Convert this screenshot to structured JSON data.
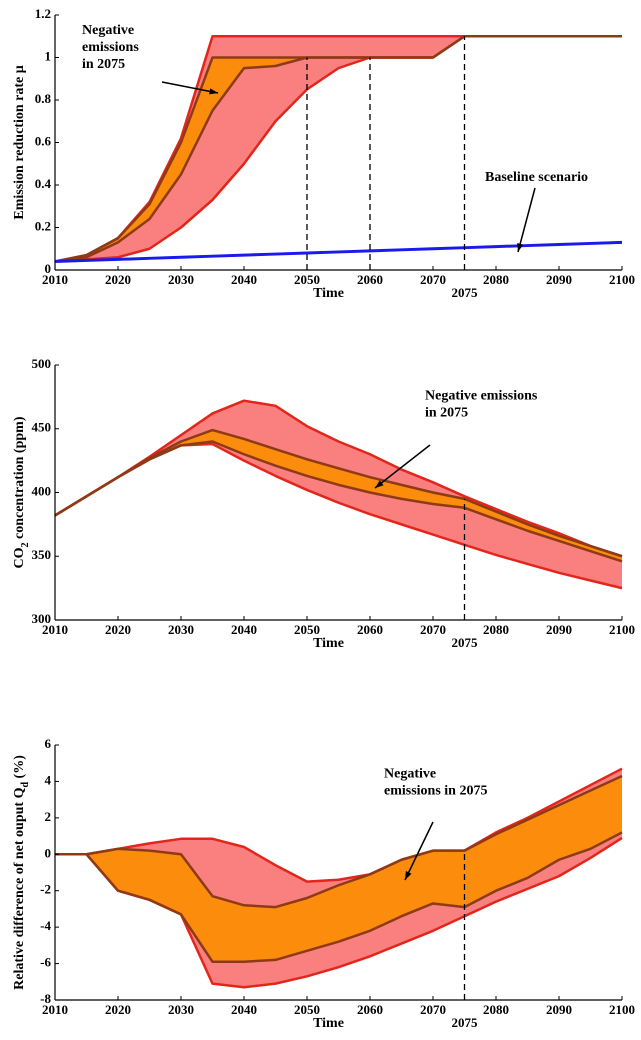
{
  "chart_data": [
    {
      "type": "area",
      "ylabel": "Emission reduction rate μ",
      "xlabel": "Time",
      "x": [
        2010,
        2015,
        2020,
        2025,
        2030,
        2035,
        2040,
        2045,
        2050,
        2055,
        2060,
        2065,
        2070,
        2075,
        2080,
        2085,
        2090,
        2095,
        2100
      ],
      "xlim": [
        2010,
        2100
      ],
      "xticks": [
        2010,
        2020,
        2030,
        2040,
        2050,
        2060,
        2070,
        2080,
        2090,
        2100
      ],
      "ylim": [
        0,
        1.2
      ],
      "yticks": [
        0,
        0.2,
        0.4,
        0.6,
        0.8,
        1,
        1.2
      ],
      "bands": [
        {
          "color": "#fa8080",
          "edge_color": "#e3261b",
          "upper": [
            0.04,
            0.07,
            0.15,
            0.32,
            0.62,
            1.1,
            1.1,
            1.1,
            1.1,
            1.1,
            1.1,
            1.1,
            1.1,
            1.1,
            1.1,
            1.1,
            1.1,
            1.1,
            1.1
          ],
          "lower": [
            0.04,
            0.05,
            0.06,
            0.1,
            0.2,
            0.33,
            0.5,
            0.7,
            0.85,
            0.95,
            1,
            1,
            1,
            1.1,
            1.1,
            1.1,
            1.1,
            1.1,
            1.1
          ]
        },
        {
          "color": "#fb8c0c",
          "edge_color": "#8e3a16",
          "upper": [
            0.04,
            0.07,
            0.15,
            0.31,
            0.6,
            1,
            1,
            1,
            1,
            1,
            1,
            1,
            1,
            1.1,
            1.1,
            1.1,
            1.1,
            1.1,
            1.1
          ],
          "lower": [
            0.04,
            0.06,
            0.13,
            0.24,
            0.45,
            0.75,
            0.95,
            0.96,
            1,
            1,
            1,
            1,
            1,
            1.1,
            1.1,
            1.1,
            1.1,
            1.1,
            1.1
          ]
        }
      ],
      "lines": [
        {
          "color": "#1a1aee",
          "values": [
            0.04,
            0.045,
            0.05,
            0.055,
            0.06,
            0.065,
            0.07,
            0.075,
            0.08,
            0.085,
            0.09,
            0.095,
            0.1,
            0.105,
            0.11,
            0.115,
            0.12,
            0.125,
            0.13
          ]
        }
      ],
      "vlines": [
        2050,
        2060,
        2075
      ],
      "annotations": [
        {
          "lines": [
            "Negative",
            "emissions",
            "in 2075"
          ]
        },
        {
          "lines": [
            "Baseline scenario"
          ]
        }
      ]
    },
    {
      "type": "area",
      "ylabel": [
        "CO",
        "2",
        " concentration (ppm)"
      ],
      "xlabel": "Time",
      "x": [
        2010,
        2015,
        2020,
        2025,
        2030,
        2035,
        2040,
        2045,
        2050,
        2055,
        2060,
        2065,
        2070,
        2075,
        2080,
        2085,
        2090,
        2095,
        2100
      ],
      "xlim": [
        2010,
        2100
      ],
      "xticks": [
        2010,
        2020,
        2030,
        2040,
        2050,
        2060,
        2070,
        2080,
        2090,
        2100
      ],
      "ylim": [
        300,
        500
      ],
      "yticks": [
        300,
        350,
        400,
        450,
        500
      ],
      "bands": [
        {
          "color": "#fa8080",
          "edge_color": "#e3261b",
          "upper": [
            382,
            397,
            412,
            428,
            445,
            462,
            472,
            468,
            452,
            440,
            430,
            418,
            408,
            397,
            387,
            377,
            368,
            358,
            350
          ],
          "lower": [
            382,
            397,
            412,
            426,
            437,
            438,
            425,
            413,
            402,
            392,
            383,
            375,
            367,
            359,
            351,
            344,
            337,
            331,
            325
          ]
        },
        {
          "color": "#fb8c0c",
          "edge_color": "#8e3a16",
          "upper": [
            382,
            397,
            412,
            427,
            440,
            449,
            442,
            434,
            426,
            419,
            412,
            406,
            400,
            395,
            385,
            375,
            366,
            358,
            350
          ],
          "lower": [
            382,
            397,
            412,
            426,
            437,
            440,
            430,
            421,
            413,
            406,
            400,
            395,
            391,
            388,
            379,
            370,
            362,
            354,
            346
          ]
        }
      ],
      "lines": [],
      "vlines": [
        2075
      ],
      "annotations": [
        {
          "lines": [
            "Negative emissions",
            "in 2075"
          ]
        }
      ]
    },
    {
      "type": "area",
      "ylabel": [
        "Relative difference of net ouput Q",
        "d",
        " (%)"
      ],
      "xlabel": "Time",
      "x": [
        2010,
        2015,
        2020,
        2025,
        2030,
        2035,
        2040,
        2045,
        2050,
        2055,
        2060,
        2065,
        2070,
        2075,
        2080,
        2085,
        2090,
        2095,
        2100
      ],
      "xlim": [
        2010,
        2100
      ],
      "xticks": [
        2010,
        2020,
        2030,
        2040,
        2050,
        2060,
        2070,
        2080,
        2090,
        2100
      ],
      "ylim": [
        -8,
        6
      ],
      "yticks": [
        -8,
        -6,
        -4,
        -2,
        0,
        2,
        4,
        6
      ],
      "bands": [
        {
          "color": "#fa8080",
          "edge_color": "#e3261b",
          "upper": [
            0,
            0,
            0.3,
            0.6,
            0.85,
            0.85,
            0.4,
            -0.6,
            -1.5,
            -1.4,
            -1.1,
            -0.3,
            0.2,
            0.2,
            1.2,
            2,
            2.9,
            3.8,
            4.7
          ],
          "lower": [
            0,
            0,
            -2,
            -2.5,
            -3.3,
            -7.1,
            -7.3,
            -7.1,
            -6.7,
            -6.2,
            -5.6,
            -4.9,
            -4.2,
            -3.4,
            -2.6,
            -1.9,
            -1.2,
            -0.2,
            0.9
          ]
        },
        {
          "color": "#fb8c0c",
          "edge_color": "#8e3a16",
          "upper": [
            0,
            0,
            0.3,
            0.2,
            0,
            -2.3,
            -2.8,
            -2.9,
            -2.4,
            -1.7,
            -1.1,
            -0.3,
            0.2,
            0.2,
            1.1,
            1.9,
            2.7,
            3.5,
            4.3
          ],
          "lower": [
            0,
            0,
            -2,
            -2.5,
            -3.3,
            -5.9,
            -5.9,
            -5.8,
            -5.3,
            -4.8,
            -4.2,
            -3.4,
            -2.7,
            -2.9,
            -2,
            -1.3,
            -0.3,
            0.3,
            1.2
          ]
        }
      ],
      "lines": [],
      "vlines": [
        2075
      ],
      "annotations": [
        {
          "lines": [
            "Negative",
            "emissions in 2075"
          ]
        }
      ]
    }
  ]
}
